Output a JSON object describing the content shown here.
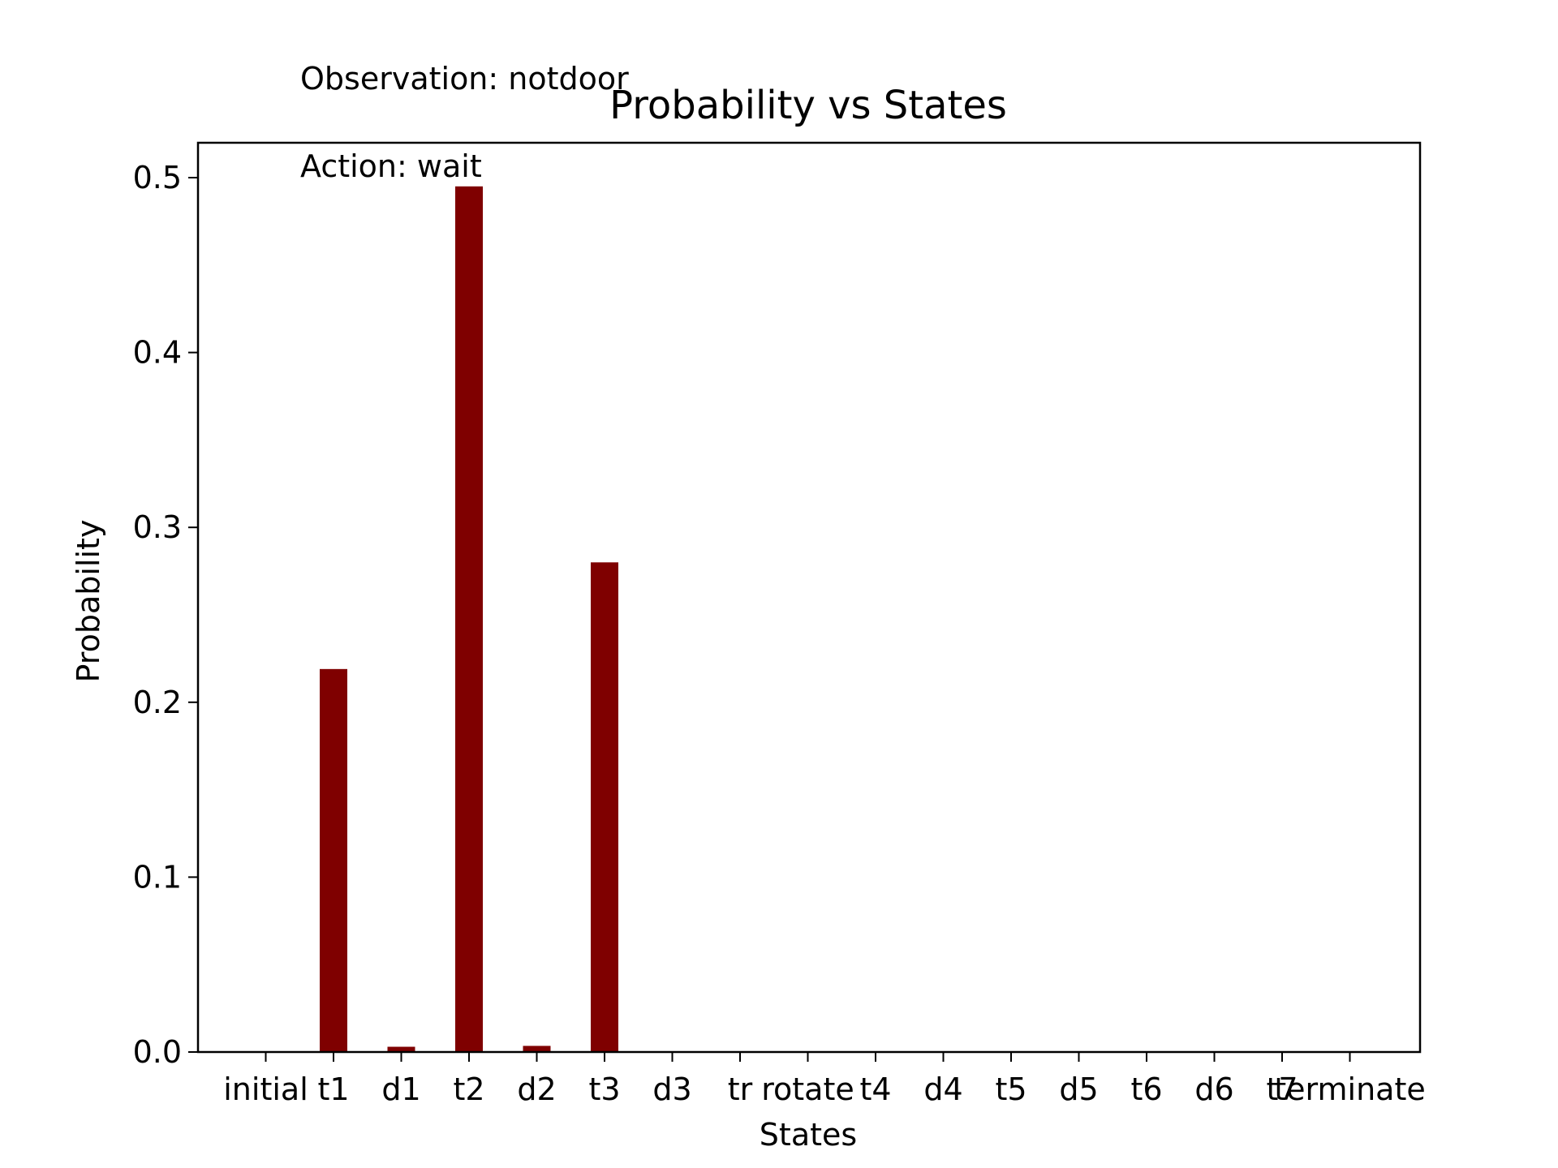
{
  "annotations": {
    "observation": "Observation: notdoor",
    "action": "Action: wait"
  },
  "chart_data": {
    "type": "bar",
    "title": "Probability vs States",
    "xlabel": "States",
    "ylabel": "Probability",
    "categories": [
      "initial",
      "t1",
      "d1",
      "t2",
      "d2",
      "t3",
      "d3",
      "tr",
      "rotate",
      "t4",
      "d4",
      "t5",
      "d5",
      "t6",
      "d6",
      "t7",
      "terminate"
    ],
    "values": [
      0.0,
      0.219,
      0.003,
      0.495,
      0.0035,
      0.28,
      0.0,
      0.0,
      0.0,
      0.0,
      0.0,
      0.0,
      0.0,
      0.0,
      0.0,
      0.0,
      0.0
    ],
    "yticks": [
      "0.0",
      "0.1",
      "0.2",
      "0.3",
      "0.4",
      "0.5"
    ],
    "ylim": [
      0,
      0.52
    ],
    "bar_color": "#7f0000",
    "grid": false,
    "legend": "none"
  }
}
